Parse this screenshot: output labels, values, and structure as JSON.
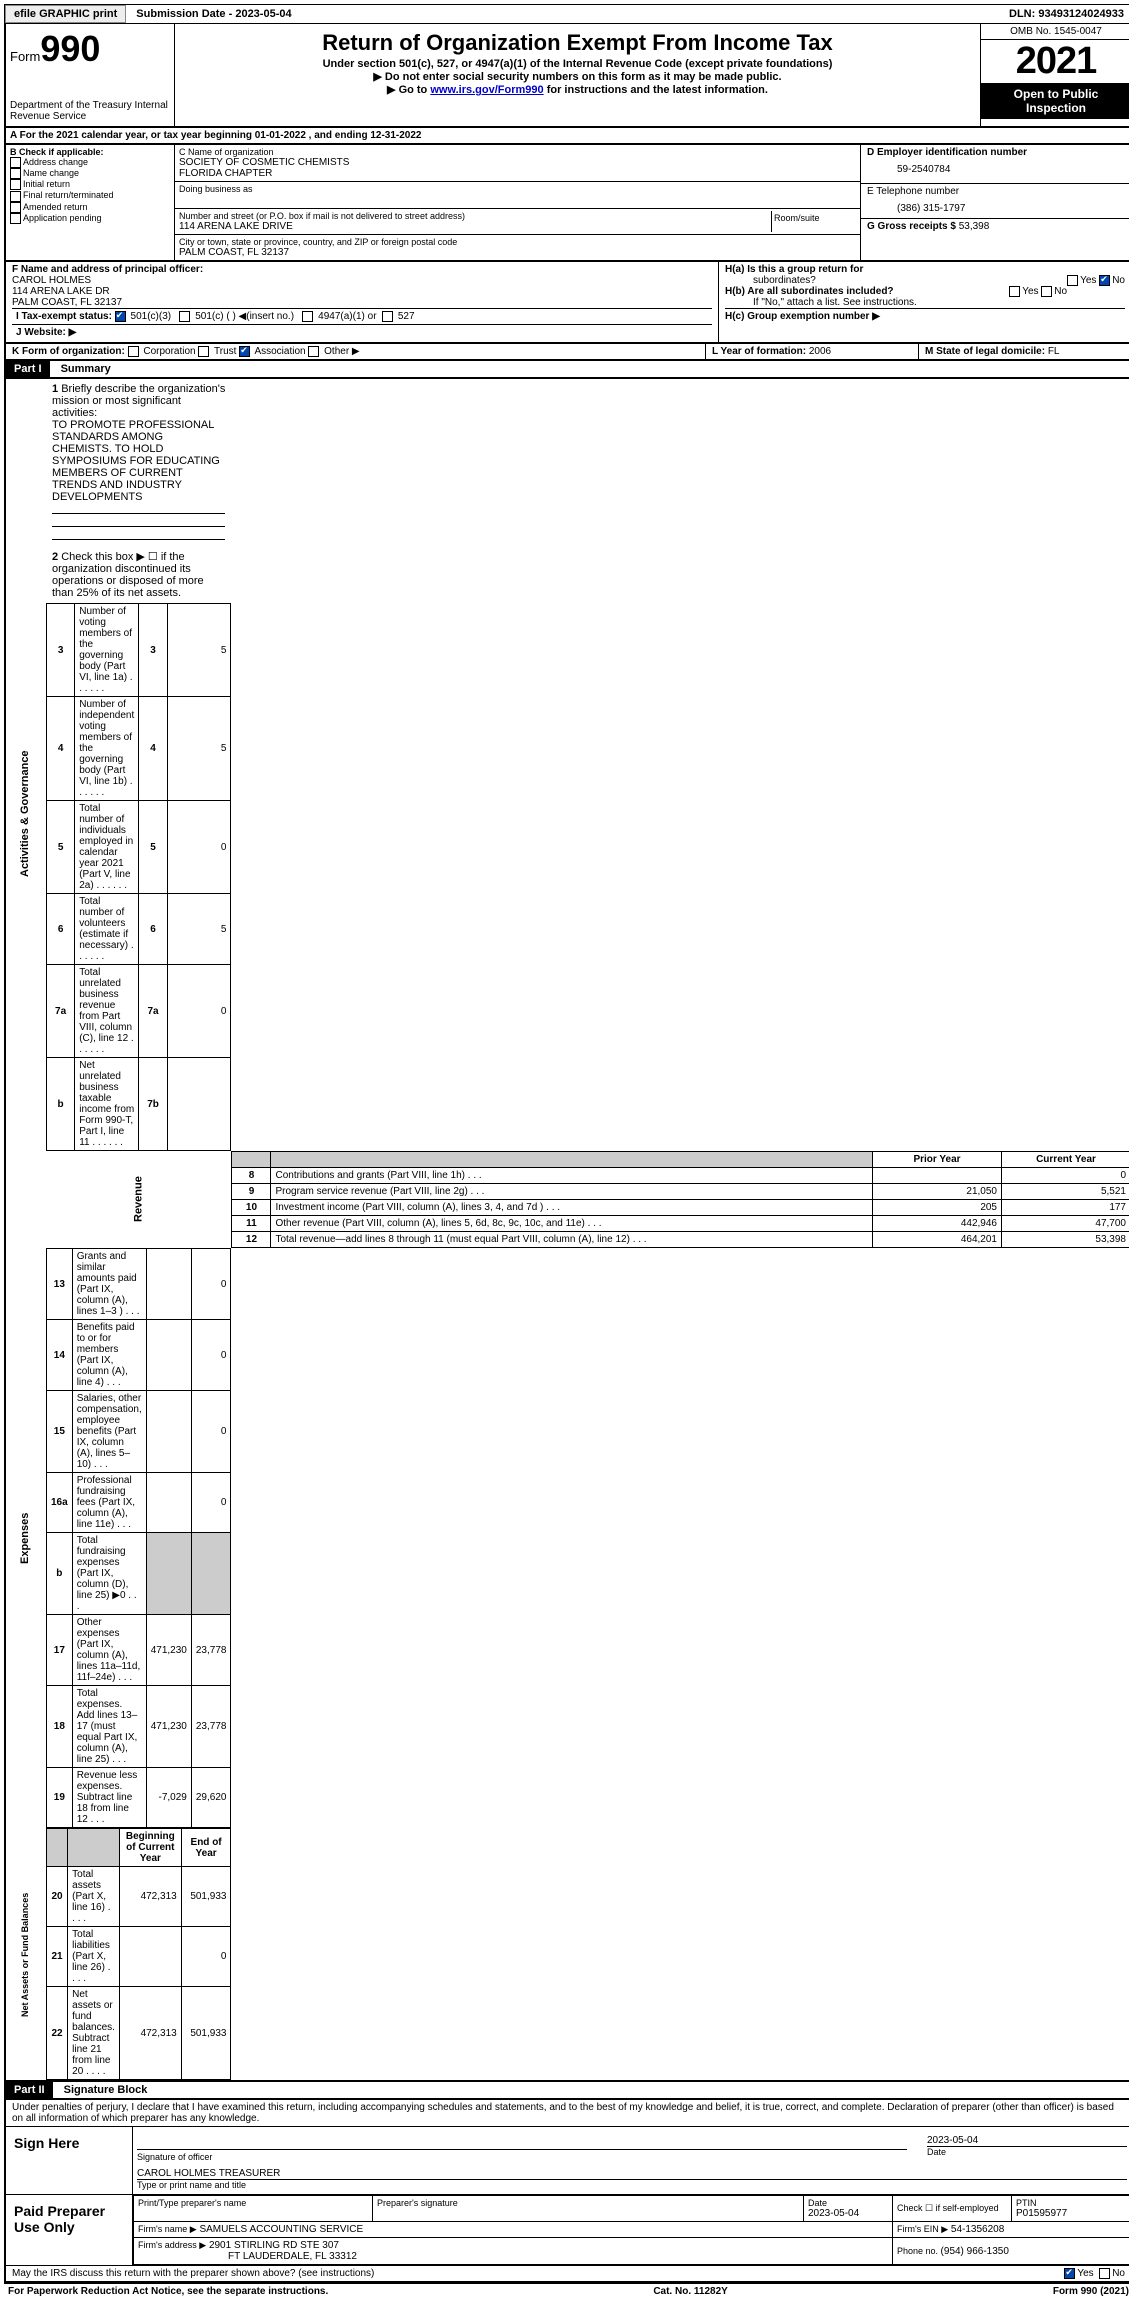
{
  "topbar": {
    "efile": "efile GRAPHIC print",
    "subdate_label": "Submission Date - ",
    "subdate": "2023-05-04",
    "dln_label": "DLN: ",
    "dln": "93493124024933"
  },
  "header": {
    "form_prefix": "Form",
    "form_number": "990",
    "dept": "Department of the Treasury Internal Revenue Service",
    "title": "Return of Organization Exempt From Income Tax",
    "sub1": "Under section 501(c), 527, or 4947(a)(1) of the Internal Revenue Code (except private foundations)",
    "sub2": "▶ Do not enter social security numbers on this form as it may be made public.",
    "sub3_pre": "▶ Go to ",
    "sub3_link": "www.irs.gov/Form990",
    "sub3_post": " for instructions and the latest information.",
    "omb": "OMB No. 1545-0047",
    "year": "2021",
    "inspect": "Open to Public Inspection"
  },
  "linea": {
    "text_pre": "A For the 2021 calendar year, or tax year beginning ",
    "begin": "01-01-2022",
    "mid": " , and ending ",
    "end": "12-31-2022"
  },
  "colb": {
    "label": "B Check if applicable:",
    "items": [
      "Address change",
      "Name change",
      "Initial return",
      "Final return/terminated",
      "Amended return",
      "Application pending"
    ]
  },
  "colc": {
    "name_label": "C Name of organization",
    "name1": "SOCIETY OF COSMETIC CHEMISTS",
    "name2": "FLORIDA CHAPTER",
    "dba": "Doing business as",
    "street_label": "Number and street (or P.O. box if mail is not delivered to street address)",
    "room_label": "Room/suite",
    "street": "114 ARENA LAKE DRIVE",
    "city_label": "City or town, state or province, country, and ZIP or foreign postal code",
    "city": "PALM COAST, FL   32137"
  },
  "cold": {
    "ein_label": "D Employer identification number",
    "ein": "59-2540784",
    "phone_label": "E Telephone number",
    "phone": "(386) 315-1797",
    "gross_label": "G Gross receipts $ ",
    "gross": "53,398"
  },
  "sectionF": {
    "label": "F  Name and address of principal officer:",
    "name": "CAROL HOLMES",
    "addr1": "114 ARENA LAKE DR",
    "addr2": "PALM COAST, FL   32137"
  },
  "sectionH": {
    "ha1": "H(a)  Is this a group return for",
    "ha2": "subordinates?",
    "yes": "Yes",
    "no": "No",
    "hb1": "H(b)  Are all subordinates included?",
    "hb2": "If \"No,\" attach a list. See instructions.",
    "hc": "H(c)  Group exemption number ▶"
  },
  "taxexempt": {
    "label": "I  Tax-exempt status:",
    "o1": "501(c)(3)",
    "o2": "501(c) (  ) ◀(insert no.)",
    "o3": "4947(a)(1) or",
    "o4": "527"
  },
  "website": {
    "label": "J  Website: ▶"
  },
  "lineK": {
    "label": "K Form of organization:",
    "o1": "Corporation",
    "o2": "Trust",
    "o3": "Association",
    "o4": "Other ▶",
    "L_label": "L Year of formation: ",
    "L_val": "2006",
    "M_label": "M State of legal domicile: ",
    "M_val": "FL"
  },
  "partI": {
    "head": "Part I",
    "title": "Summary",
    "q1": "Briefly describe the organization's mission or most significant activities:",
    "q1_ans": "TO PROMOTE PROFESSIONAL STANDARDS AMONG CHEMISTS. TO HOLD SYMPOSIUMS FOR EDUCATING MEMBERS OF CURRENT TRENDS AND INDUSTRY DEVELOPMENTS",
    "q2": "Check this box ▶ ☐ if the organization discontinued its operations or disposed of more than 25% of its net assets.",
    "sections": {
      "gov": "Activities & Governance",
      "rev": "Revenue",
      "exp": "Expenses",
      "net": "Net Assets or Fund Balances"
    },
    "cols": {
      "prior": "Prior Year",
      "current": "Current Year",
      "begin": "Beginning of Current Year",
      "end": "End of Year"
    },
    "rows_gov": [
      {
        "n": "3",
        "lbl": "Number of voting members of the governing body (Part VI, line 1a)",
        "box": "3",
        "val": "5"
      },
      {
        "n": "4",
        "lbl": "Number of independent voting members of the governing body (Part VI, line 1b)",
        "box": "4",
        "val": "5"
      },
      {
        "n": "5",
        "lbl": "Total number of individuals employed in calendar year 2021 (Part V, line 2a)",
        "box": "5",
        "val": "0"
      },
      {
        "n": "6",
        "lbl": "Total number of volunteers (estimate if necessary)",
        "box": "6",
        "val": "5"
      },
      {
        "n": "7a",
        "lbl": "Total unrelated business revenue from Part VIII, column (C), line 12",
        "box": "7a",
        "val": "0"
      },
      {
        "n": "b",
        "lbl": "Net unrelated business taxable income from Form 990-T, Part I, line 11",
        "box": "7b",
        "val": ""
      }
    ],
    "rows_rev": [
      {
        "n": "8",
        "lbl": "Contributions and grants (Part VIII, line 1h)",
        "p": "",
        "c": "0"
      },
      {
        "n": "9",
        "lbl": "Program service revenue (Part VIII, line 2g)",
        "p": "21,050",
        "c": "5,521"
      },
      {
        "n": "10",
        "lbl": "Investment income (Part VIII, column (A), lines 3, 4, and 7d )",
        "p": "205",
        "c": "177"
      },
      {
        "n": "11",
        "lbl": "Other revenue (Part VIII, column (A), lines 5, 6d, 8c, 9c, 10c, and 11e)",
        "p": "442,946",
        "c": "47,700"
      },
      {
        "n": "12",
        "lbl": "Total revenue—add lines 8 through 11 (must equal Part VIII, column (A), line 12)",
        "p": "464,201",
        "c": "53,398"
      }
    ],
    "rows_exp": [
      {
        "n": "13",
        "lbl": "Grants and similar amounts paid (Part IX, column (A), lines 1–3 )",
        "p": "",
        "c": "0"
      },
      {
        "n": "14",
        "lbl": "Benefits paid to or for members (Part IX, column (A), line 4)",
        "p": "",
        "c": "0"
      },
      {
        "n": "15",
        "lbl": "Salaries, other compensation, employee benefits (Part IX, column (A), lines 5–10)",
        "p": "",
        "c": "0"
      },
      {
        "n": "16a",
        "lbl": "Professional fundraising fees (Part IX, column (A), line 11e)",
        "p": "",
        "c": "0"
      },
      {
        "n": "b",
        "lbl": "Total fundraising expenses (Part IX, column (D), line 25) ▶0",
        "p": "GRAY",
        "c": "GRAY"
      },
      {
        "n": "17",
        "lbl": "Other expenses (Part IX, column (A), lines 11a–11d, 11f–24e)",
        "p": "471,230",
        "c": "23,778"
      },
      {
        "n": "18",
        "lbl": "Total expenses. Add lines 13–17 (must equal Part IX, column (A), line 25)",
        "p": "471,230",
        "c": "23,778"
      },
      {
        "n": "19",
        "lbl": "Revenue less expenses. Subtract line 18 from line 12",
        "p": "-7,029",
        "c": "29,620"
      }
    ],
    "rows_net": [
      {
        "n": "20",
        "lbl": "Total assets (Part X, line 16)",
        "p": "472,313",
        "c": "501,933"
      },
      {
        "n": "21",
        "lbl": "Total liabilities (Part X, line 26)",
        "p": "",
        "c": "0"
      },
      {
        "n": "22",
        "lbl": "Net assets or fund balances. Subtract line 21 from line 20",
        "p": "472,313",
        "c": "501,933"
      }
    ]
  },
  "partII": {
    "head": "Part II",
    "title": "Signature Block",
    "decl": "Under penalties of perjury, I declare that I have examined this return, including accompanying schedules and statements, and to the best of my knowledge and belief, it is true, correct, and complete. Declaration of preparer (other than officer) is based on all information of which preparer has any knowledge.",
    "sign_here": "Sign Here",
    "sig_officer": "Signature of officer",
    "sig_date": "2023-05-04",
    "date_lbl": "Date",
    "typed_name": "CAROL HOLMES   TREASURER",
    "typed_lbl": "Type or print name and title",
    "paid": "Paid Preparer Use Only",
    "prep_name_lbl": "Print/Type preparer's name",
    "prep_sig_lbl": "Preparer's signature",
    "prep_date_lbl": "Date",
    "prep_date": "2023-05-04",
    "self_emp": "Check ☐ if self-employed",
    "ptin_lbl": "PTIN",
    "ptin": "P01595977",
    "firm_name_lbl": "Firm's name    ▶",
    "firm_name": "SAMUELS ACCOUNTING SERVICE",
    "firm_ein_lbl": "Firm's EIN ▶",
    "firm_ein": "54-1356208",
    "firm_addr_lbl": "Firm's address ▶",
    "firm_addr1": "2901 STIRLING RD STE 307",
    "firm_addr2": "FT LAUDERDALE, FL   33312",
    "firm_phone_lbl": "Phone no. ",
    "firm_phone": "(954) 966-1350",
    "discuss": "May the IRS discuss this return with the preparer shown above? (see instructions)"
  },
  "footer": {
    "left": "For Paperwork Reduction Act Notice, see the separate instructions.",
    "mid": "Cat. No. 11282Y",
    "right": "Form 990 (2021)"
  }
}
